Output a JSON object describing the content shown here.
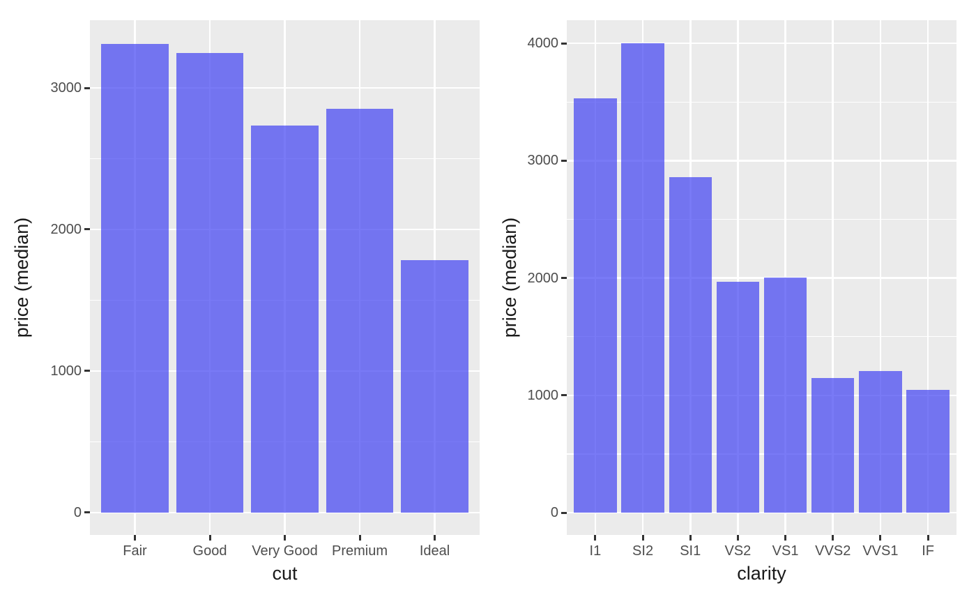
{
  "figure": {
    "background_color": "#ffffff",
    "panel_background_color": "#ebebeb",
    "gridline_color": "#ffffff",
    "bar_fill_color": "#7375f0",
    "bar_fill_rgba": "rgba(64,66,242,0.70)",
    "tick_mark_color": "#333333",
    "axis_text_color": "#4d4d4d",
    "axis_title_color": "#1a1a1a"
  },
  "chart_data": [
    {
      "type": "bar",
      "title": "",
      "categories": [
        "Fair",
        "Good",
        "Very Good",
        "Premium",
        "Ideal"
      ],
      "values": [
        3310,
        3245,
        2735,
        2850,
        1785
      ],
      "xlabel": "cut",
      "ylabel": "price (median)",
      "yticks": [
        0,
        1000,
        2000,
        3000
      ],
      "minor_yticks": [
        500,
        1500,
        2500
      ],
      "ylim": [
        -158,
        3478
      ],
      "grid": "major+minor, white on gray panel",
      "legend": "none"
    },
    {
      "type": "bar",
      "title": "",
      "categories": [
        "I1",
        "SI2",
        "SI1",
        "VS2",
        "VS1",
        "VVS2",
        "VVS1",
        "IF"
      ],
      "values": [
        3530,
        4000,
        2860,
        1965,
        2005,
        1150,
        1205,
        1045
      ],
      "xlabel": "clarity",
      "ylabel": "price (median)",
      "yticks": [
        0,
        1000,
        2000,
        3000,
        4000
      ],
      "minor_yticks": [
        500,
        1500,
        2500,
        3500
      ],
      "ylim": [
        -190,
        4197
      ],
      "grid": "major+minor, white on gray panel",
      "legend": "none"
    }
  ]
}
